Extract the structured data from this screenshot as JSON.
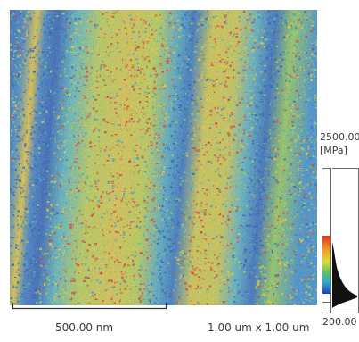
{
  "colorbar": {
    "max_label": "2500.00",
    "unit_label": "[MPa]",
    "min_label": "200.00"
  },
  "scalebar": {
    "length_label": "500.00 nm"
  },
  "scan_size_label": "1.00 um x 1.00 um",
  "colormap": {
    "low": "#1f56b8",
    "mid_low": "#2aa9c9",
    "mid": "#9bd24a",
    "mid_high": "#e8c928",
    "high": "#e0321f"
  }
}
